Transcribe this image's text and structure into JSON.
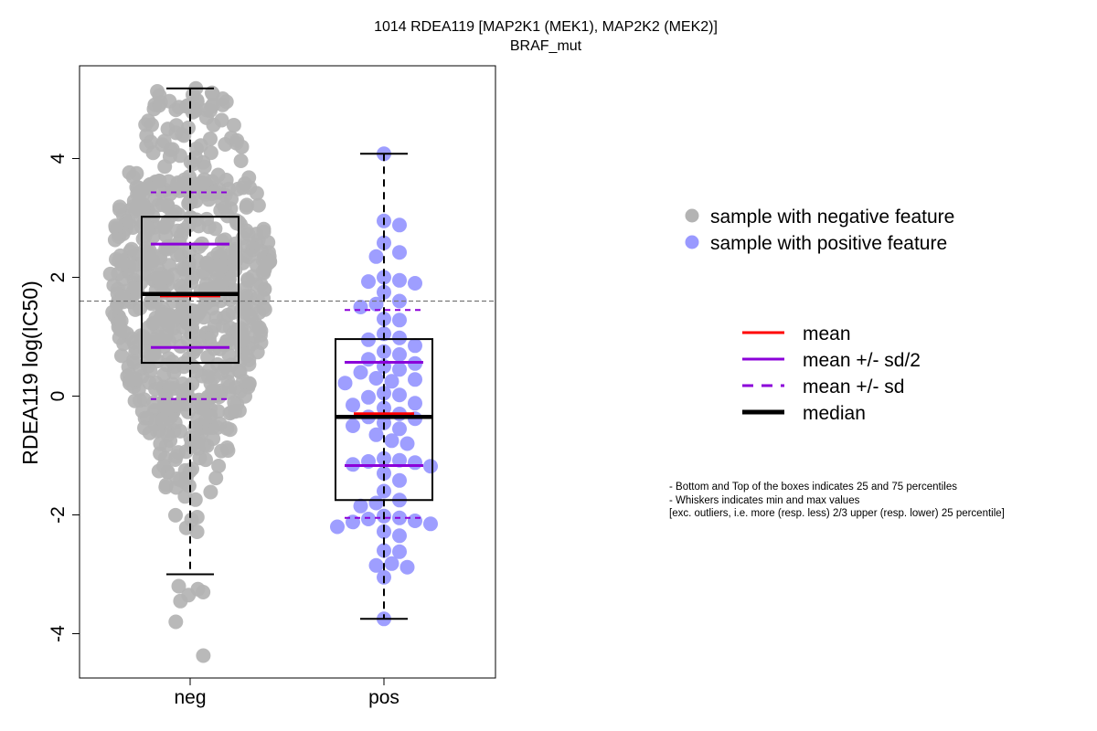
{
  "chart_data": {
    "type": "box-swarm",
    "title": "1014 RDEA119 [MAP2K1 (MEK1), MAP2K2 (MEK2)]",
    "subtitle": "BRAF_mut",
    "xlabel": "",
    "ylabel": "RDEA119 log(IC50)",
    "categories": [
      "neg",
      "pos"
    ],
    "ylim": [
      -4.6,
      5.7
    ],
    "y_ticks": [
      -4,
      -2,
      0,
      2,
      4
    ],
    "reference_line": 1.6,
    "groups": [
      {
        "name": "neg",
        "n_points": 720,
        "color": "#b3b3b3",
        "min": -4.37,
        "max": 5.18,
        "whisker_low": -3.0,
        "whisker_high": 5.18,
        "q1": 0.56,
        "median": 1.72,
        "q3": 3.02,
        "mean": 1.69,
        "mean_minus_half_sd": 0.82,
        "mean_plus_half_sd": 2.56,
        "mean_minus_sd": -0.05,
        "mean_plus_sd": 3.43,
        "outliers": [
          -3.2,
          -3.25,
          -3.3,
          -3.35,
          -3.45,
          -3.8,
          -4.37
        ]
      },
      {
        "name": "pos",
        "color": "#9999ff",
        "points": [
          4.08,
          2.95,
          2.88,
          2.58,
          2.42,
          2.35,
          2.0,
          1.95,
          1.93,
          1.9,
          1.75,
          1.6,
          1.55,
          1.5,
          1.3,
          1.28,
          1.05,
          0.98,
          0.95,
          0.85,
          0.75,
          0.7,
          0.62,
          0.55,
          0.5,
          0.45,
          0.4,
          0.3,
          0.28,
          0.25,
          0.22,
          0.05,
          0.02,
          -0.02,
          -0.12,
          -0.15,
          -0.2,
          -0.3,
          -0.35,
          -0.38,
          -0.45,
          -0.5,
          -0.55,
          -0.65,
          -0.75,
          -0.8,
          -1.05,
          -1.08,
          -1.1,
          -1.12,
          -1.15,
          -1.18,
          -1.3,
          -1.42,
          -1.6,
          -1.75,
          -1.8,
          -1.85,
          -2.02,
          -2.05,
          -2.07,
          -2.1,
          -2.12,
          -2.15,
          -2.2,
          -2.28,
          -2.35,
          -2.6,
          -2.62,
          -2.82,
          -2.85,
          -2.88,
          -3.05,
          -3.75
        ],
        "min": -3.75,
        "max": 4.08,
        "whisker_low": -3.75,
        "whisker_high": 4.08,
        "q1": -1.75,
        "median": -0.35,
        "q3": 0.96,
        "mean": -0.3,
        "mean_minus_half_sd": -1.17,
        "mean_plus_half_sd": 0.57,
        "mean_minus_sd": -2.05,
        "mean_plus_sd": 1.45
      }
    ],
    "legend": {
      "placement": "right",
      "points": [
        {
          "label": "sample with negative feature",
          "color": "#b3b3b3"
        },
        {
          "label": "sample with positive feature",
          "color": "#9999ff"
        }
      ],
      "lines": [
        {
          "label": "mean",
          "color": "#ff0000",
          "style": "solid"
        },
        {
          "label": "mean +/- sd/2",
          "color": "#8b00d9",
          "style": "solid"
        },
        {
          "label": "mean +/- sd",
          "color": "#8b00d9",
          "style": "dashed"
        },
        {
          "label": "median",
          "color": "#000000",
          "style": "solid-thick"
        }
      ]
    },
    "notes": [
      "- Bottom and Top of the boxes indicates 25 and 75 percentiles",
      "- Whiskers indicates min and max values",
      "[exc. outliers, i.e. more (resp. less) 2/3 upper (resp. lower) 25 percentile]"
    ]
  }
}
